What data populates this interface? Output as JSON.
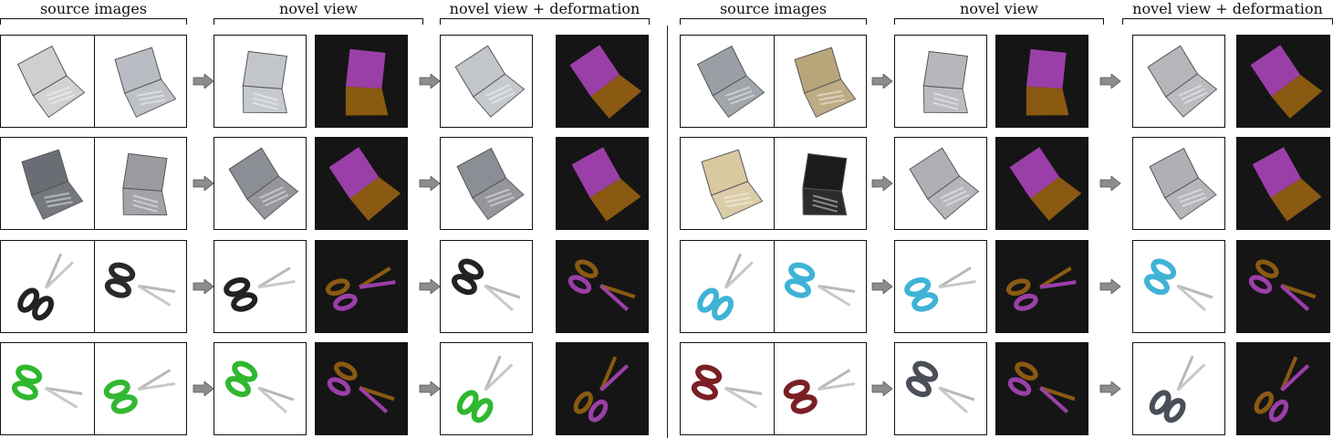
{
  "headers": {
    "source_images": "source images",
    "novel_view": "novel view",
    "novel_view_deformation": "novel view + deformation"
  },
  "figure": {
    "left_group": {
      "rows": [
        {
          "object": "laptop",
          "source_colors": [
            "#cfcfd2",
            "#b9bcc2"
          ],
          "view_color": "#c2c5ca"
        },
        {
          "object": "laptop",
          "source_colors": [
            "#6a6d73",
            "#9a9ca2"
          ],
          "view_color": "#8b8e94"
        },
        {
          "object": "scissors",
          "source_colors": [
            "#222222",
            "#2a2a2a"
          ],
          "view_color": "#222222"
        },
        {
          "object": "scissors",
          "source_colors": [
            "#2fb82f",
            "#33b833"
          ],
          "view_color": "#2fb82f"
        }
      ]
    },
    "right_group": {
      "rows": [
        {
          "object": "laptop",
          "source_colors": [
            "#9a9ea5",
            "#b8a67a"
          ],
          "view_color": "#b5b7bb"
        },
        {
          "object": "laptop",
          "source_colors": [
            "#d9c9a0",
            "#1b1b1b"
          ],
          "view_color": "#aeb0b5"
        },
        {
          "object": "scissors",
          "source_colors": [
            "#3fb3d6",
            "#3fb3d6"
          ],
          "view_color": "#3fb3d6"
        },
        {
          "object": "scissors",
          "source_colors": [
            "#7a1f25",
            "#7a1f25"
          ],
          "view_color": "#4a4e58"
        }
      ]
    },
    "part_colors": {
      "part_a": "#9b3fa8",
      "part_b": "#8a5a12"
    },
    "mask_background": "#151515",
    "arrow_color": "#8c8c8c"
  }
}
